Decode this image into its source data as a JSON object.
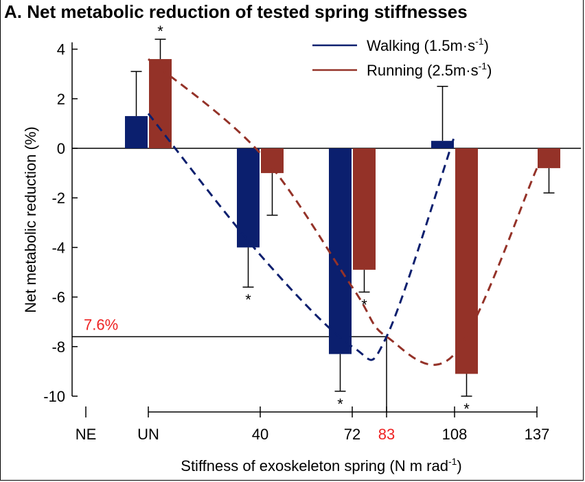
{
  "chart_data": {
    "type": "bar",
    "title": "A. Net metabolic reduction of tested spring stiffnesses",
    "ylabel": "Net metabolic reduction (%)",
    "xlabel": "Stiffness of exoskeleton spring (N m rad",
    "xlabel_sup": "-1",
    "xlabel_close": ")",
    "ylim": [
      -10,
      4
    ],
    "yticks": [
      4,
      2,
      0,
      -2,
      -4,
      -6,
      -8,
      -10
    ],
    "categories": [
      "NE",
      "UN",
      "40",
      "72",
      "83",
      "108",
      "137"
    ],
    "highlight_category": "83",
    "series": [
      {
        "name": "Walking (1.5m·s",
        "name_sup": "-1",
        "name_close": ")",
        "color": "#0b1f6e",
        "values": [
          null,
          1.3,
          -4.0,
          -8.3,
          null,
          0.3,
          null
        ],
        "errors": [
          null,
          1.8,
          1.6,
          1.5,
          null,
          2.2,
          null
        ],
        "significant": [
          false,
          false,
          true,
          true,
          false,
          false,
          false
        ],
        "fit_curve": [
          [
            0,
            1.4
          ],
          [
            40,
            -4.3
          ],
          [
            72,
            -8.0
          ],
          [
            83,
            -7.6
          ],
          [
            108,
            0.5
          ]
        ]
      },
      {
        "name": "Running (2.5m·s",
        "name_sup": "-1",
        "name_close": ")",
        "color": "#943228",
        "values": [
          null,
          3.6,
          -1.0,
          -4.9,
          null,
          -9.1,
          -0.8
        ],
        "errors": [
          null,
          0.8,
          1.7,
          0.9,
          null,
          0.9,
          1.0
        ],
        "significant": [
          false,
          true,
          false,
          true,
          false,
          true,
          false
        ],
        "fit_curve": [
          [
            0,
            3.6
          ],
          [
            40,
            -0.2
          ],
          [
            72,
            -5.6
          ],
          [
            83,
            -7.6
          ],
          [
            108,
            -8.3
          ],
          [
            137,
            -0.8
          ]
        ]
      }
    ],
    "annotation": {
      "text": "7.6%",
      "y": -7.6,
      "x": 83,
      "color": "#ee2222"
    },
    "significance_marker": "*",
    "legend_position": "top-right",
    "grid": false
  }
}
